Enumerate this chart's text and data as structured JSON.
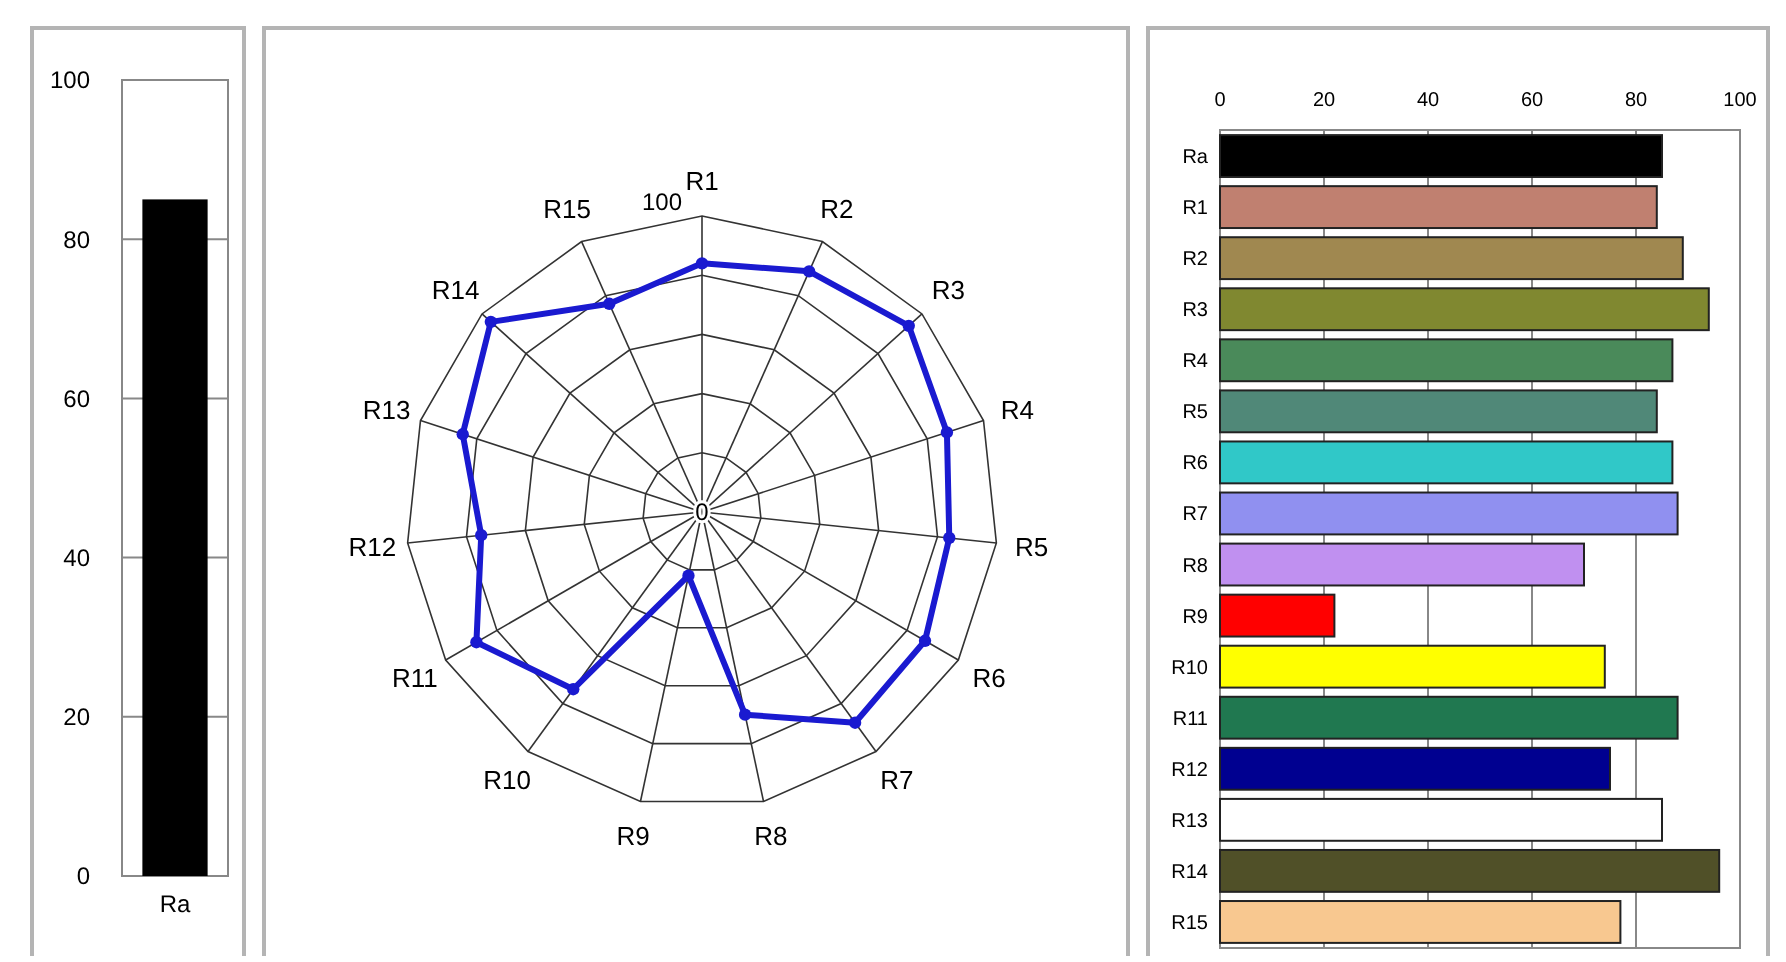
{
  "chart_data": [
    {
      "type": "bar",
      "categories": [
        "Ra"
      ],
      "values": [
        85
      ],
      "color": "#000000",
      "ylim": [
        0,
        100
      ],
      "yticks": [
        0,
        20,
        40,
        60,
        80,
        100
      ],
      "grid": "y"
    },
    {
      "type": "radar",
      "categories": [
        "R1",
        "R2",
        "R3",
        "R4",
        "R5",
        "R6",
        "R7",
        "R8",
        "R9",
        "R10",
        "R11",
        "R12",
        "R13",
        "R14",
        "R15"
      ],
      "series": [
        {
          "color": "#1a1ad0",
          "values": [
            84,
            89,
            94,
            87,
            84,
            87,
            88,
            70,
            22,
            74,
            88,
            75,
            85,
            96,
            77
          ]
        }
      ],
      "ylim": [
        0,
        100
      ],
      "yticks": [
        0,
        100
      ],
      "marker": "circle",
      "grid": true
    },
    {
      "type": "bar",
      "orientation": "horizontal",
      "categories": [
        "Ra",
        "R1",
        "R2",
        "R3",
        "R4",
        "R5",
        "R6",
        "R7",
        "R8",
        "R9",
        "R10",
        "R11",
        "R12",
        "R13",
        "R14",
        "R15"
      ],
      "values": [
        85,
        84,
        89,
        94,
        87,
        84,
        87,
        88,
        70,
        22,
        74,
        88,
        75,
        85,
        96,
        77
      ],
      "colors": [
        "#000000",
        "#c08070",
        "#a08850",
        "#808830",
        "#4a8a5a",
        "#508878",
        "#30c8c8",
        "#9090f0",
        "#c090f0",
        "#ff0000",
        "#ffff00",
        "#207850",
        "#000090",
        "#ffffff",
        "#505028",
        "#f8c890"
      ],
      "xlim": [
        0,
        100
      ],
      "xticks": [
        0,
        20,
        40,
        60,
        80,
        100
      ],
      "grid": "x"
    }
  ]
}
